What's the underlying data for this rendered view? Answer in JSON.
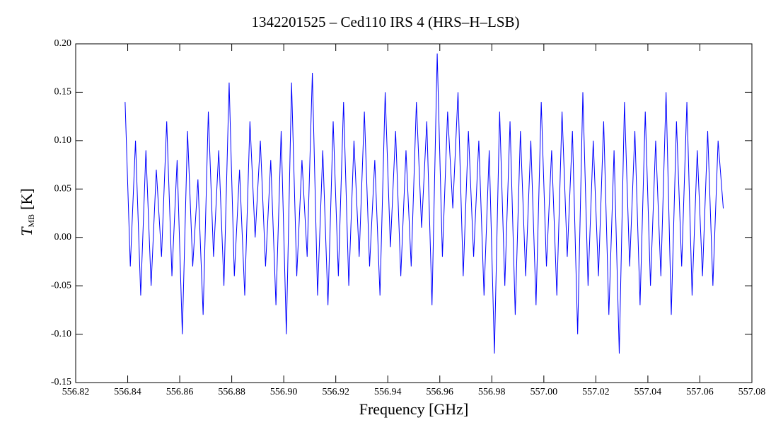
{
  "chart_data": {
    "type": "line",
    "title": "1342201525 – Ced110 IRS 4 (HRS–H–LSB)",
    "xlabel": "Frequency [GHz]",
    "ylabel": {
      "symbol": "T",
      "subscript": "MB",
      "unit": "[K]"
    },
    "xlim": [
      556.82,
      557.08
    ],
    "ylim": [
      -0.15,
      0.2
    ],
    "xticks": [
      556.82,
      556.84,
      556.86,
      556.88,
      {
        "value": 556.9,
        "label": "556.90"
      },
      556.92,
      556.94,
      556.96,
      556.98,
      {
        "value": 557.0,
        "label": "557.00"
      },
      557.02,
      557.04,
      557.06,
      557.08
    ],
    "yticks": [
      -0.15,
      {
        "value": -0.1,
        "label": "-0.10"
      },
      -0.05,
      {
        "value": 0,
        "label": "0.00"
      },
      0.05,
      {
        "value": 0.1,
        "label": "0.10"
      },
      0.15,
      {
        "value": 0.2,
        "label": "0.20"
      }
    ],
    "series": [
      {
        "color": "#0000ff",
        "x": [
          556.839,
          556.841,
          556.843,
          556.845,
          556.847,
          556.849,
          556.851,
          556.853,
          556.855,
          556.857,
          556.859,
          556.861,
          556.863,
          556.865,
          556.867,
          556.869,
          556.871,
          556.873,
          556.875,
          556.877,
          556.879,
          556.881,
          556.883,
          556.885,
          556.887,
          556.889,
          556.891,
          556.893,
          556.895,
          556.897,
          556.899,
          556.901,
          556.903,
          556.905,
          556.907,
          556.909,
          556.911,
          556.913,
          556.915,
          556.917,
          556.919,
          556.921,
          556.923,
          556.925,
          556.927,
          556.929,
          556.931,
          556.933,
          556.935,
          556.937,
          556.939,
          556.941,
          556.943,
          556.945,
          556.947,
          556.949,
          556.951,
          556.953,
          556.955,
          556.957,
          556.959,
          556.961,
          556.963,
          556.965,
          556.967,
          556.969,
          556.971,
          556.973,
          556.975,
          556.977,
          556.979,
          556.981,
          556.983,
          556.985,
          556.987,
          556.989,
          556.991,
          556.993,
          556.995,
          556.997,
          556.999,
          557.001,
          557.003,
          557.005,
          557.007,
          557.009,
          557.011,
          557.013,
          557.015,
          557.017,
          557.019,
          557.021,
          557.023,
          557.025,
          557.027,
          557.029,
          557.031,
          557.033,
          557.035,
          557.037,
          557.039,
          557.041,
          557.043,
          557.045,
          557.047,
          557.049,
          557.051,
          557.053,
          557.055,
          557.057,
          557.059,
          557.061,
          557.063,
          557.065,
          557.067,
          557.069
        ],
        "values": [
          0.14,
          -0.03,
          0.1,
          -0.06,
          0.09,
          -0.05,
          0.07,
          -0.02,
          0.12,
          -0.04,
          0.08,
          -0.1,
          0.11,
          -0.03,
          0.06,
          -0.08,
          0.13,
          -0.02,
          0.09,
          -0.05,
          0.16,
          -0.04,
          0.07,
          -0.06,
          0.12,
          0.0,
          0.1,
          -0.03,
          0.08,
          -0.07,
          0.11,
          -0.1,
          0.16,
          -0.04,
          0.08,
          -0.02,
          0.17,
          -0.06,
          0.09,
          -0.07,
          0.12,
          -0.04,
          0.14,
          -0.05,
          0.1,
          -0.02,
          0.13,
          -0.03,
          0.08,
          -0.06,
          0.15,
          -0.01,
          0.11,
          -0.04,
          0.09,
          -0.03,
          0.14,
          0.01,
          0.12,
          -0.07,
          0.19,
          -0.02,
          0.13,
          0.03,
          0.15,
          -0.04,
          0.11,
          -0.02,
          0.1,
          -0.06,
          0.09,
          -0.12,
          0.13,
          -0.05,
          0.12,
          -0.08,
          0.11,
          -0.04,
          0.1,
          -0.07,
          0.14,
          -0.03,
          0.09,
          -0.06,
          0.13,
          -0.02,
          0.11,
          -0.1,
          0.15,
          -0.05,
          0.1,
          -0.04,
          0.12,
          -0.08,
          0.09,
          -0.12,
          0.14,
          -0.03,
          0.11,
          -0.07,
          0.13,
          -0.05,
          0.1,
          -0.04,
          0.15,
          -0.08,
          0.12,
          -0.03,
          0.14,
          -0.06,
          0.09,
          -0.04,
          0.11,
          -0.05,
          0.1,
          0.03
        ]
      }
    ]
  }
}
